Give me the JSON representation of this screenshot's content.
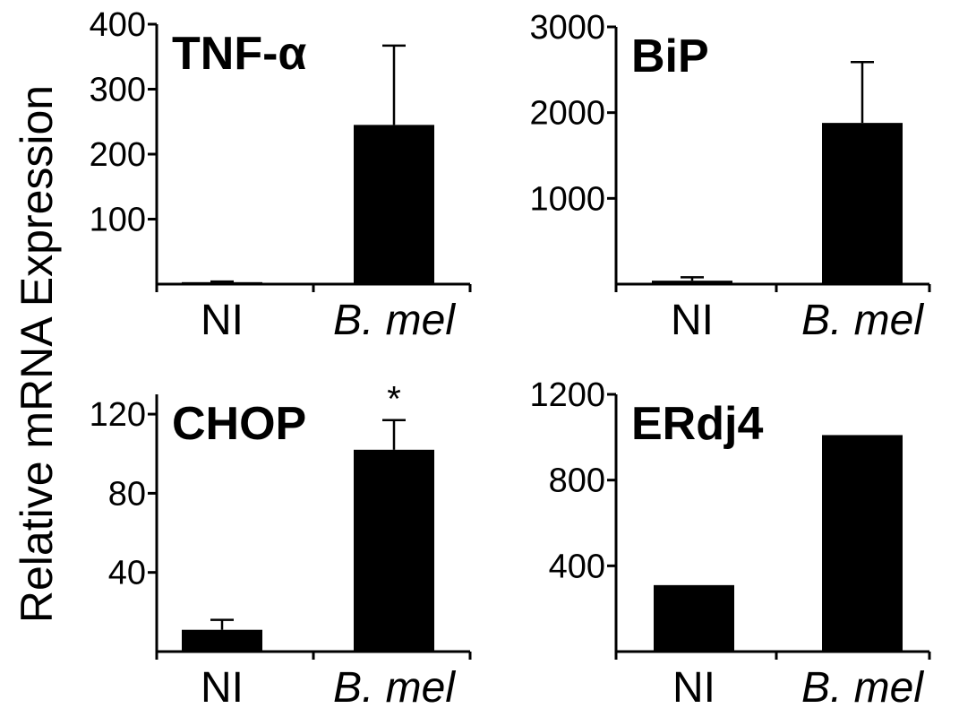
{
  "ylabel": "Relative mRNA Expression",
  "colors": {
    "bar": "#000000",
    "background": "#ffffff"
  },
  "chart_data": [
    {
      "type": "bar",
      "title": "TNF-α",
      "categories": [
        "NI",
        "B. mel"
      ],
      "values": [
        3,
        245
      ],
      "errors": [
        1,
        122
      ],
      "ylim": [
        0,
        400
      ],
      "yticks": [
        100,
        200,
        300,
        400
      ],
      "significance": [
        "",
        ""
      ]
    },
    {
      "type": "bar",
      "title": "BiP",
      "categories": [
        "NI",
        "B. mel"
      ],
      "values": [
        40,
        1880
      ],
      "errors": [
        40,
        710
      ],
      "ylim": [
        0,
        3000
      ],
      "yticks": [
        1000,
        2000,
        3000
      ],
      "significance": [
        "",
        ""
      ]
    },
    {
      "type": "bar",
      "title": "CHOP",
      "categories": [
        "NI",
        "B. mel"
      ],
      "values": [
        11,
        102
      ],
      "errors": [
        5,
        15
      ],
      "ylim": [
        0,
        130
      ],
      "yticks": [
        40,
        80,
        120
      ],
      "significance": [
        "",
        "*"
      ]
    },
    {
      "type": "bar",
      "title": "ERdj4",
      "categories": [
        "NI",
        "B. mel"
      ],
      "values": [
        310,
        1010
      ],
      "errors": [
        0,
        0
      ],
      "ylim": [
        0,
        1200
      ],
      "yticks": [
        400,
        800,
        1200
      ],
      "significance": [
        "",
        ""
      ]
    }
  ]
}
